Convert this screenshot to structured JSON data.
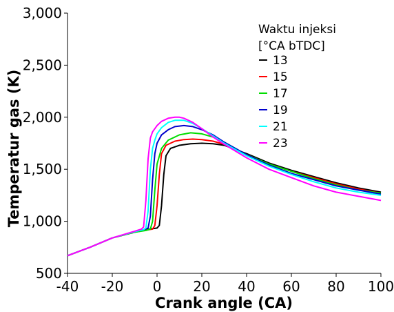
{
  "chart_data": {
    "type": "line",
    "xlabel": "Crank angle (CA)",
    "ylabel": "Temperatur gas (K)",
    "xlim": [
      -40,
      100
    ],
    "ylim": [
      500,
      3000
    ],
    "x_ticks": [
      "-40",
      "-20",
      "0",
      "20",
      "40",
      "60",
      "80",
      "100"
    ],
    "y_ticks": [
      "500",
      "1,000",
      "1,500",
      "2,000",
      "2,500",
      "3,000"
    ],
    "legend": {
      "title_line1": "Waktu injeksi",
      "title_line2": "[°CA bTDC]",
      "placement": "top-right"
    },
    "grid": false,
    "series": [
      {
        "name": "13",
        "color": "#000000",
        "x": [
          -40,
          -30,
          -20,
          -10,
          -5,
          0,
          1,
          2,
          3,
          4,
          6,
          10,
          15,
          20,
          25,
          30,
          40,
          50,
          60,
          70,
          80,
          90,
          100
        ],
        "y": [
          670,
          750,
          840,
          895,
          920,
          935,
          960,
          1150,
          1450,
          1630,
          1700,
          1730,
          1745,
          1750,
          1745,
          1730,
          1650,
          1560,
          1490,
          1430,
          1370,
          1320,
          1280
        ]
      },
      {
        "name": "15",
        "color": "#ff0000",
        "x": [
          -40,
          -30,
          -20,
          -10,
          -5,
          -2,
          -1,
          0,
          1,
          2,
          4,
          8,
          12,
          16,
          20,
          25,
          30,
          40,
          50,
          60,
          70,
          80,
          90,
          100
        ],
        "y": [
          670,
          750,
          840,
          895,
          915,
          925,
          960,
          1150,
          1450,
          1650,
          1730,
          1770,
          1785,
          1790,
          1785,
          1770,
          1740,
          1640,
          1550,
          1480,
          1420,
          1360,
          1310,
          1270
        ]
      },
      {
        "name": "17",
        "color": "#00dd00",
        "x": [
          -40,
          -30,
          -20,
          -10,
          -5,
          -3,
          -2,
          -1,
          0,
          2,
          5,
          10,
          15,
          20,
          25,
          30,
          40,
          50,
          60,
          70,
          80,
          90,
          100
        ],
        "y": [
          670,
          750,
          840,
          895,
          912,
          925,
          1000,
          1300,
          1550,
          1700,
          1780,
          1830,
          1850,
          1840,
          1810,
          1760,
          1640,
          1550,
          1480,
          1410,
          1350,
          1300,
          1270
        ]
      },
      {
        "name": "19",
        "color": "#0000cc",
        "x": [
          -40,
          -30,
          -20,
          -10,
          -6,
          -4,
          -3,
          -2,
          -1,
          0,
          2,
          5,
          8,
          12,
          16,
          20,
          25,
          30,
          40,
          50,
          60,
          70,
          80,
          90,
          100
        ],
        "y": [
          670,
          750,
          840,
          900,
          920,
          935,
          1050,
          1400,
          1650,
          1750,
          1830,
          1880,
          1910,
          1920,
          1910,
          1880,
          1830,
          1760,
          1640,
          1540,
          1460,
          1400,
          1340,
          1300,
          1260
        ]
      },
      {
        "name": "21",
        "color": "#00ffff",
        "x": [
          -40,
          -30,
          -20,
          -10,
          -6,
          -5,
          -4,
          -3,
          -2,
          -1,
          0,
          2,
          5,
          8,
          12,
          16,
          20,
          25,
          30,
          40,
          50,
          60,
          70,
          80,
          90,
          100
        ],
        "y": [
          670,
          750,
          840,
          900,
          920,
          935,
          1100,
          1500,
          1700,
          1780,
          1840,
          1900,
          1950,
          1970,
          1970,
          1940,
          1890,
          1820,
          1750,
          1630,
          1530,
          1450,
          1380,
          1320,
          1280,
          1250
        ]
      },
      {
        "name": "23",
        "color": "#ff00ff",
        "x": [
          -40,
          -30,
          -20,
          -10,
          -7,
          -6,
          -5,
          -4,
          -3,
          -2,
          0,
          2,
          5,
          8,
          10,
          12,
          16,
          20,
          25,
          30,
          40,
          50,
          60,
          70,
          80,
          90,
          100
        ],
        "y": [
          670,
          750,
          840,
          905,
          925,
          945,
          1200,
          1600,
          1800,
          1860,
          1920,
          1960,
          1990,
          2000,
          2000,
          1990,
          1950,
          1890,
          1810,
          1740,
          1610,
          1500,
          1420,
          1340,
          1280,
          1240,
          1200
        ]
      }
    ]
  }
}
